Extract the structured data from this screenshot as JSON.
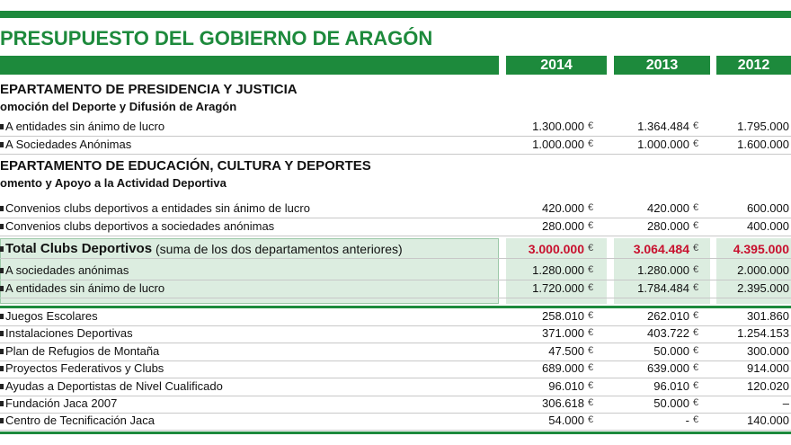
{
  "title": "PRESUPUESTO DEL GOBIERNO DE ARAGÓN",
  "years": [
    "2014",
    "2013",
    "2012"
  ],
  "currency": "€",
  "sections": [
    {
      "heading": "EPARTAMENTO DE PRESIDENCIA Y JUSTICIA",
      "subheading": "omoción del Deporte y Difusión de Aragón",
      "rows": [
        {
          "label": "A entidades sin ánimo de lucro",
          "values": [
            "1.300.000",
            "1.364.484",
            "1.795.000"
          ]
        },
        {
          "label": "A Sociedades Anónimas",
          "values": [
            "1.000.000",
            "1.000.000",
            "1.600.000"
          ]
        }
      ]
    },
    {
      "heading": "EPARTAMENTO DE EDUCACIÓN, CULTURA Y DEPORTES",
      "subheading": "omento y Apoyo a la Actividad Deportiva",
      "rows": [
        {
          "label": "Convenios clubs deportivos a entidades sin ánimo de lucro",
          "values": [
            "420.000",
            "420.000",
            "600.000"
          ]
        },
        {
          "label": "Convenios clubs deportivos a sociedades anónimas",
          "values": [
            "280.000",
            "280.000",
            "400.000"
          ]
        }
      ]
    }
  ],
  "total": {
    "label": "Total Clubs Deportivos",
    "note": "(suma de los dos departamentos anteriores)",
    "values": [
      "3.000.000",
      "3.064.484",
      "4.395.000"
    ],
    "rows": [
      {
        "label": "A sociedades anónimas",
        "values": [
          "1.280.000",
          "1.280.000",
          "2.000.000"
        ]
      },
      {
        "label": "A entidades sin ánimo de lucro",
        "values": [
          "1.720.000",
          "1.784.484",
          "2.395.000"
        ]
      }
    ]
  },
  "other_rows": [
    {
      "label": "Juegos Escolares",
      "values": [
        "258.010",
        "262.010",
        "301.860"
      ]
    },
    {
      "label": "Instalaciones Deportivas",
      "values": [
        "371.000",
        "403.722",
        "1.254.153"
      ]
    },
    {
      "label": "Plan de Refugios de Montaña",
      "values": [
        "47.500",
        "50.000",
        "300.000"
      ]
    },
    {
      "label": "Proyectos Federativos y Clubs",
      "values": [
        "689.000",
        "639.000",
        "914.000"
      ]
    },
    {
      "label": "Ayudas a Deportistas de Nivel Cualificado",
      "values": [
        "96.010",
        "96.010",
        "120.020"
      ]
    },
    {
      "label": "Fundación Jaca 2007",
      "values": [
        "306.618",
        "50.000",
        "–"
      ]
    },
    {
      "label": "Centro de Tecnificación Jaca",
      "values": [
        "54.000",
        "-",
        "140.000"
      ]
    }
  ]
}
